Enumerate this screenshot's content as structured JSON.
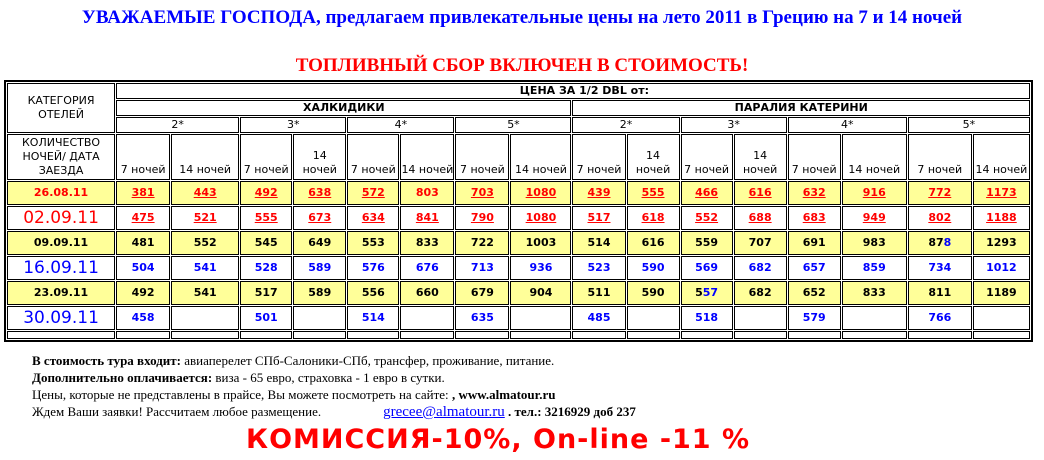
{
  "title": "УВАЖАЕМЫЕ ГОСПОДА,  предлагаем привлекательные цены на лето 2011 в Грецию на 7 и 14 ночей",
  "fuel_note": "ТОПЛИВНЫЙ СБОР ВКЛЮЧЕН В СТОИМОСТЬ!",
  "table": {
    "corner_top": "КАТЕГОРИЯ ОТЕЛЕЙ",
    "corner_bottom": "КОЛИЧЕСТВО НОЧЕЙ/ ДАТА ЗАЕЗДА",
    "price_header": "ЦЕНА ЗА 1/2 DBL от:",
    "regions": [
      "ХАЛКИДИКИ",
      "ПАРАЛИЯ КАТЕРИНИ"
    ],
    "categories": [
      "2*",
      "3*",
      "4*",
      "5*",
      "2*",
      "3*",
      "4*",
      "5*"
    ],
    "nights": [
      "7 ночей",
      "14 ночей",
      "7 ночей",
      "14 ночей",
      "7 ночей",
      "14 ночей",
      "7 ночей",
      "14 ночей",
      "7 ночей",
      "14 ночей",
      "7 ночей",
      "14 ночей",
      "7 ночей",
      "14 ночей",
      "7 ночей",
      "14 ночей"
    ],
    "rows": [
      {
        "date": "26.08.11",
        "color": "#ff0000",
        "underline": true,
        "highlight": true,
        "large_date": true,
        "not_underlined": [
          5
        ],
        "values": [
          "381",
          "443",
          "492",
          "638",
          "572",
          "803",
          "703",
          "1080",
          "439",
          "555",
          "466",
          "616",
          "632",
          "916",
          "772",
          "1173"
        ]
      },
      {
        "date": "02.09.11",
        "color": "#ff0000",
        "underline": true,
        "highlight": false,
        "large_date": false,
        "values": [
          "475",
          "521",
          "555",
          "673",
          "634",
          "841",
          "790",
          "1080",
          "517",
          "618",
          "552",
          "688",
          "683",
          "949",
          "802",
          "1188"
        ]
      },
      {
        "date": "09.09.11",
        "color": "#000000",
        "underline": false,
        "highlight": true,
        "large_date": true,
        "blue_tail": {
          "14": 1
        },
        "values": [
          "481",
          "552",
          "545",
          "649",
          "553",
          "833",
          "722",
          "1003",
          "514",
          "616",
          "559",
          "707",
          "691",
          "983",
          "878",
          "1293"
        ]
      },
      {
        "date": "16.09.11",
        "color": "#0000ff",
        "underline": false,
        "highlight": false,
        "large_date": false,
        "values": [
          "504",
          "541",
          "528",
          "589",
          "576",
          "676",
          "713",
          "936",
          "523",
          "590",
          "569",
          "682",
          "657",
          "859",
          "734",
          "1012"
        ]
      },
      {
        "date": "23.09.11",
        "color": "#000000",
        "underline": false,
        "highlight": true,
        "large_date": true,
        "blue_tail": {
          "10": 2
        },
        "values": [
          "492",
          "541",
          "517",
          "589",
          "556",
          "660",
          "679",
          "904",
          "511",
          "590",
          "557",
          "682",
          "652",
          "833",
          "811",
          "1189"
        ]
      },
      {
        "date": "30.09.11",
        "color": "#0000ff",
        "underline": false,
        "highlight": false,
        "large_date": false,
        "values": [
          "458",
          "",
          "501",
          "",
          "514",
          "",
          "635",
          "",
          "485",
          "",
          "518",
          "",
          "579",
          "",
          "766",
          ""
        ]
      }
    ]
  },
  "footer": {
    "includes_label": "В стоимость тура входит:",
    "includes_text": " авиаперелет СПб-Салоники-СПб, трансфер, проживание, питание.",
    "extra_label": "Дополнительно оплачивается:",
    "extra_text": " виза - 65 евро, страховка - 1 евро в сутки.",
    "site_text": "Цены, которые не представлены в прайсе, Вы  можете посмотреть на сайте: ",
    "site_link": ", www.almatour.ru",
    "wait_text": "Ждем Ваши заявки! Рассчитаем любое размещение.",
    "email": "grecee@almatour.ru",
    "phone": " . тел.: 3216929 доб 237"
  },
  "promo": "КОМИССИЯ-10%, On-line -11 %",
  "colors": {
    "highlight_row": "#ffff99",
    "red": "#ff0000",
    "blue": "#0000ff"
  }
}
